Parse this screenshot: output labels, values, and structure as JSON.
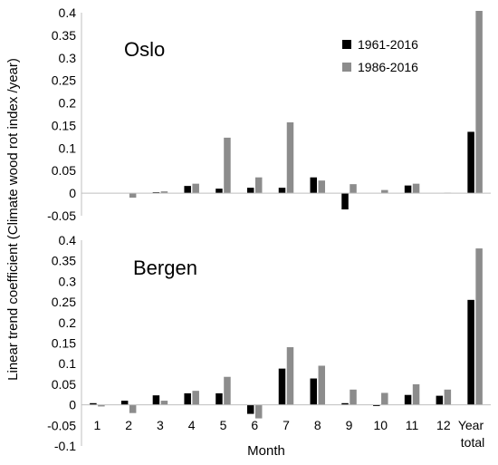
{
  "chart_data": [
    {
      "type": "bar",
      "title": "Oslo",
      "categories": [
        "1",
        "2",
        "3",
        "4",
        "5",
        "6",
        "7",
        "8",
        "9",
        "10",
        "11",
        "12",
        "Year total"
      ],
      "series": [
        {
          "name": "1961-2016",
          "color": "#000000",
          "values": [
            0,
            0,
            0.002,
            0.016,
            0.01,
            0.012,
            0.012,
            0.035,
            -0.036,
            0,
            0.017,
            0,
            0.136
          ]
        },
        {
          "name": "1986-2016",
          "color": "#8c8c8c",
          "values": [
            0,
            -0.01,
            0.004,
            0.021,
            0.123,
            0.035,
            0.157,
            0.028,
            0.02,
            0.007,
            0.021,
            0.001,
            0.404
          ]
        }
      ],
      "ylim": [
        -0.05,
        0.4
      ],
      "yticks": [
        "0.4",
        "0.35",
        "0.3",
        "0.25",
        "0.2",
        "0.15",
        "0.1",
        "0.05",
        "0",
        "-0.05"
      ],
      "legend": "top-right"
    },
    {
      "type": "bar",
      "title": "Bergen",
      "categories": [
        "1",
        "2",
        "3",
        "4",
        "5",
        "6",
        "7",
        "8",
        "9",
        "10",
        "11",
        "12",
        "Year total"
      ],
      "series": [
        {
          "name": "1961-2016",
          "color": "#000000",
          "values": [
            0.004,
            0.01,
            0.023,
            0.028,
            0.028,
            -0.022,
            0.088,
            0.064,
            0.004,
            -0.003,
            0.024,
            0.022,
            0.255
          ]
        },
        {
          "name": "1986-2016",
          "color": "#8c8c8c",
          "values": [
            -0.004,
            -0.02,
            0.01,
            0.034,
            0.068,
            -0.033,
            0.14,
            0.095,
            0.037,
            0.029,
            0.05,
            0.037,
            0.38
          ]
        }
      ],
      "ylim": [
        -0.1,
        0.4
      ],
      "yticks": [
        "0.4",
        "0.35",
        "0.3",
        "0.25",
        "0.2",
        "0.15",
        "0.1",
        "0.05",
        "0",
        "-0.05",
        "-0.1"
      ]
    }
  ],
  "shared": {
    "ylabel": "Linear trend coefficient (Climate wood rot index /year)",
    "xlabel": "Month",
    "month_labels": [
      "1",
      "2",
      "3",
      "4",
      "5",
      "6",
      "7",
      "8",
      "9",
      "10",
      "11",
      "12"
    ],
    "year_label_line1": "Year",
    "year_label_line2": "total"
  }
}
